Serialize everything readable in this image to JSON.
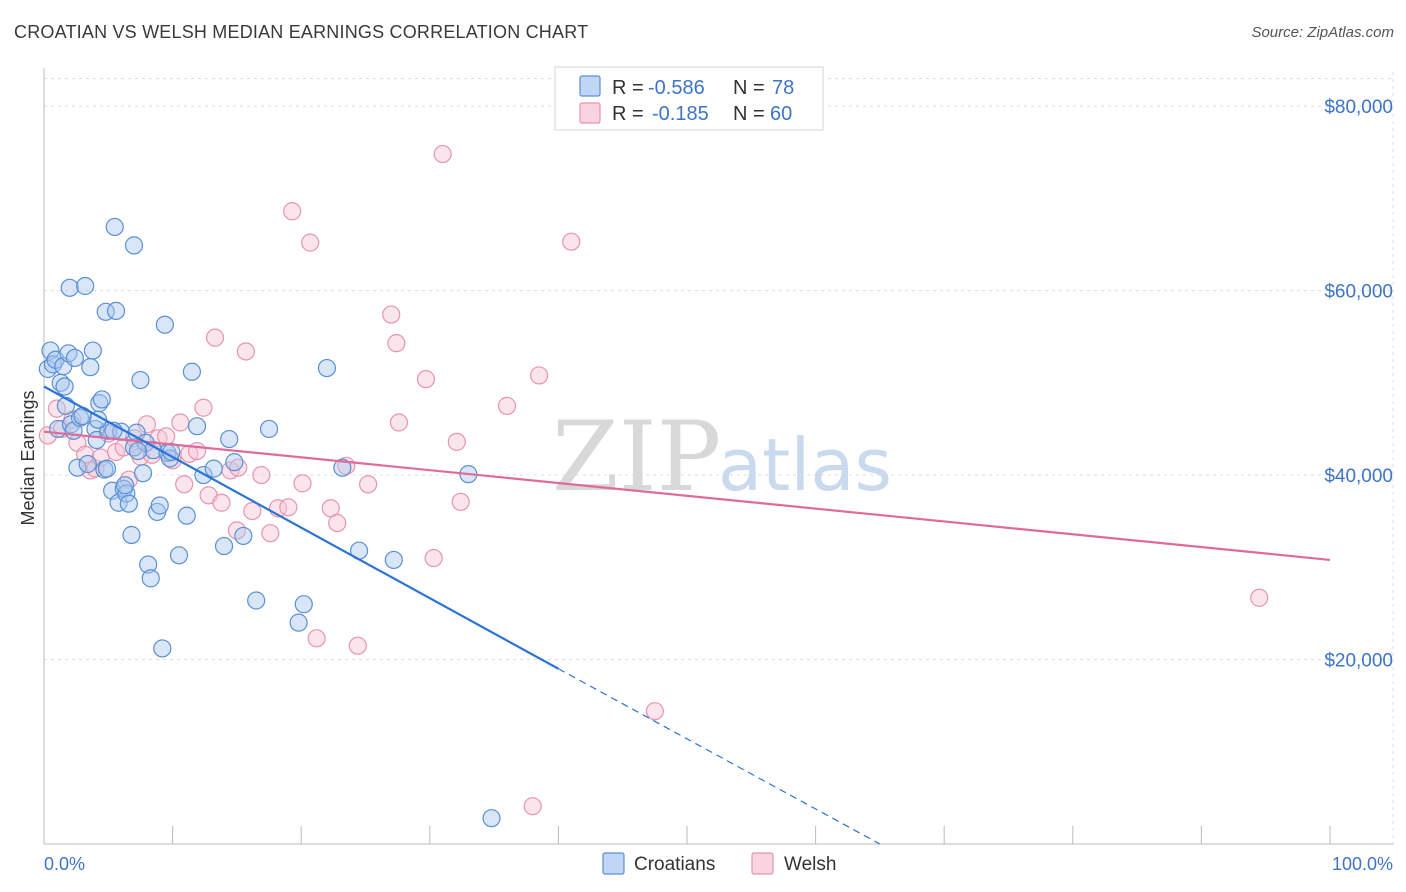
{
  "header": {
    "title": "CROATIAN VS WELSH MEDIAN EARNINGS CORRELATION CHART",
    "source": "Source: ZipAtlas.com"
  },
  "watermark": {
    "zip": "ZIP",
    "atlas": "atlas"
  },
  "colors": {
    "croatians_fill": "#a9c8f0",
    "croatians_stroke": "#5b8fd4",
    "croatians_line": "#2b74d6",
    "welsh_fill": "#f7c5d5",
    "welsh_stroke": "#e794b0",
    "welsh_line": "#e06b98",
    "grid": "#dcdcdc",
    "tick_text": "#3d74c8"
  },
  "legend": {
    "rows": [
      {
        "r_label": "R =",
        "r_value": "-0.586",
        "n_label": "N =",
        "n_value": "78"
      },
      {
        "r_label": "R =",
        "r_value": "-0.185",
        "n_label": "N =",
        "n_value": "60"
      }
    ]
  },
  "bottom_legend": {
    "croatians": "Croatians",
    "welsh": "Welsh"
  },
  "chart_data": {
    "type": "scatter",
    "title": "CROATIAN VS WELSH MEDIAN EARNINGS CORRELATION CHART",
    "xlabel": "",
    "ylabel": "Median Earnings",
    "xlim": [
      0,
      100
    ],
    "ylim": [
      0,
      85000
    ],
    "x_tick_labels": {
      "min": "0.0%",
      "max": "100.0%"
    },
    "y_ticks": [
      {
        "value": 20000,
        "label": "$20,000"
      },
      {
        "value": 40000,
        "label": "$40,000"
      },
      {
        "value": 60000,
        "label": "$60,000"
      },
      {
        "value": 80000,
        "label": "$80,000"
      }
    ],
    "series": [
      {
        "name": "Croatians",
        "r": -0.586,
        "n": 78,
        "trend": {
          "x0": 0,
          "y0": 49600,
          "x1": 40,
          "y1": 19000,
          "dash_x1": 65,
          "dash_y1": 0
        },
        "points": [
          [
            0.3,
            51500
          ],
          [
            0.5,
            53500
          ],
          [
            0.7,
            52000
          ],
          [
            0.9,
            52500
          ],
          [
            1.1,
            45000
          ],
          [
            1.3,
            50000
          ],
          [
            1.5,
            51800
          ],
          [
            1.7,
            47500
          ],
          [
            1.9,
            53200
          ],
          [
            2.1,
            45500
          ],
          [
            2.3,
            44800
          ],
          [
            2.6,
            40800
          ],
          [
            2.8,
            46200
          ],
          [
            2.0,
            60300
          ],
          [
            3.2,
            60500
          ],
          [
            3.4,
            41200
          ],
          [
            3.6,
            51700
          ],
          [
            3.8,
            53500
          ],
          [
            4.0,
            45000
          ],
          [
            4.1,
            43800
          ],
          [
            4.3,
            47800
          ],
          [
            4.5,
            48200
          ],
          [
            4.7,
            40600
          ],
          [
            4.8,
            57700
          ],
          [
            5.0,
            44800
          ],
          [
            5.3,
            38300
          ],
          [
            5.6,
            57800
          ],
          [
            5.5,
            66900
          ],
          [
            5.8,
            37000
          ],
          [
            6.0,
            44700
          ],
          [
            6.2,
            38500
          ],
          [
            6.4,
            38000
          ],
          [
            6.6,
            36900
          ],
          [
            6.8,
            33500
          ],
          [
            7.0,
            43000
          ],
          [
            7.2,
            44600
          ],
          [
            7.5,
            50300
          ],
          [
            7.7,
            40200
          ],
          [
            7.9,
            43500
          ],
          [
            8.1,
            30300
          ],
          [
            8.3,
            28800
          ],
          [
            8.5,
            42700
          ],
          [
            8.8,
            36000
          ],
          [
            9.0,
            36700
          ],
          [
            9.2,
            21200
          ],
          [
            9.4,
            56300
          ],
          [
            9.6,
            42400
          ],
          [
            9.8,
            41800
          ],
          [
            10.5,
            31300
          ],
          [
            11.1,
            35600
          ],
          [
            11.5,
            51200
          ],
          [
            11.9,
            45300
          ],
          [
            12.4,
            40000
          ],
          [
            13.2,
            40700
          ],
          [
            14.0,
            32300
          ],
          [
            14.4,
            43900
          ],
          [
            14.8,
            41400
          ],
          [
            15.5,
            33400
          ],
          [
            16.5,
            26400
          ],
          [
            17.5,
            45000
          ],
          [
            19.8,
            24000
          ],
          [
            20.2,
            26000
          ],
          [
            22.0,
            51600
          ],
          [
            23.2,
            40800
          ],
          [
            24.5,
            31800
          ],
          [
            27.2,
            30800
          ],
          [
            33.0,
            40100
          ],
          [
            34.8,
            2800
          ],
          [
            7.0,
            64900
          ],
          [
            5.4,
            44800
          ],
          [
            2.4,
            52700
          ],
          [
            4.2,
            46000
          ],
          [
            3.0,
            46400
          ],
          [
            6.3,
            38900
          ],
          [
            1.6,
            49600
          ],
          [
            9.9,
            42500
          ],
          [
            4.9,
            40700
          ],
          [
            7.3,
            42600
          ]
        ]
      },
      {
        "name": "Welsh",
        "r": -0.185,
        "n": 60,
        "trend": {
          "x0": 0,
          "y0": 44700,
          "x1": 100,
          "y1": 30800
        },
        "points": [
          [
            0.3,
            44300
          ],
          [
            1.0,
            47200
          ],
          [
            1.4,
            45000
          ],
          [
            2.2,
            46000
          ],
          [
            2.6,
            43500
          ],
          [
            3.2,
            42200
          ],
          [
            3.6,
            40500
          ],
          [
            4.0,
            40700
          ],
          [
            4.4,
            41900
          ],
          [
            5.0,
            44500
          ],
          [
            5.6,
            42500
          ],
          [
            6.2,
            43000
          ],
          [
            6.6,
            39500
          ],
          [
            7.0,
            44000
          ],
          [
            7.5,
            42000
          ],
          [
            8.0,
            45500
          ],
          [
            8.4,
            42200
          ],
          [
            8.9,
            44000
          ],
          [
            9.5,
            44200
          ],
          [
            10.0,
            41600
          ],
          [
            10.6,
            45700
          ],
          [
            10.9,
            39000
          ],
          [
            11.3,
            42300
          ],
          [
            11.9,
            42600
          ],
          [
            12.4,
            47300
          ],
          [
            12.8,
            37800
          ],
          [
            13.3,
            54900
          ],
          [
            13.8,
            37000
          ],
          [
            14.5,
            40500
          ],
          [
            15.1,
            40800
          ],
          [
            15.7,
            53400
          ],
          [
            16.2,
            36100
          ],
          [
            16.9,
            40000
          ],
          [
            17.6,
            33700
          ],
          [
            18.2,
            36400
          ],
          [
            19.3,
            68600
          ],
          [
            20.1,
            39100
          ],
          [
            20.7,
            65200
          ],
          [
            21.2,
            22300
          ],
          [
            22.3,
            36400
          ],
          [
            22.8,
            34800
          ],
          [
            23.5,
            41000
          ],
          [
            24.4,
            21500
          ],
          [
            27.0,
            57400
          ],
          [
            27.4,
            54300
          ],
          [
            27.6,
            45700
          ],
          [
            29.7,
            50400
          ],
          [
            30.3,
            31000
          ],
          [
            31.0,
            74800
          ],
          [
            32.1,
            43600
          ],
          [
            32.4,
            37100
          ],
          [
            36.0,
            47500
          ],
          [
            38.0,
            4100
          ],
          [
            38.5,
            50800
          ],
          [
            41.0,
            65300
          ],
          [
            47.5,
            14400
          ],
          [
            94.5,
            26700
          ],
          [
            19.0,
            36500
          ],
          [
            25.2,
            39000
          ],
          [
            15.0,
            34000
          ]
        ]
      }
    ]
  }
}
